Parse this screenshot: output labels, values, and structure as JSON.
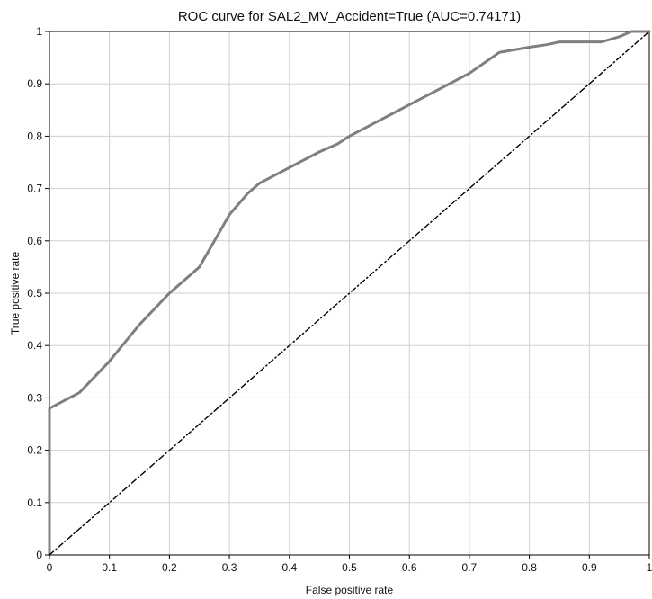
{
  "chart_data": {
    "type": "line",
    "title": "ROC curve for SAL2_MV_Accident=True (AUC=0.74171)",
    "xlabel": "False positive rate",
    "ylabel": "True positive rate",
    "xlim": [
      0,
      1
    ],
    "ylim": [
      0,
      1
    ],
    "xticks": [
      "0",
      "0.1",
      "0.2",
      "0.3",
      "0.4",
      "0.5",
      "0.6",
      "0.7",
      "0.8",
      "0.9",
      "1"
    ],
    "yticks": [
      "0",
      "0.1",
      "0.2",
      "0.3",
      "0.4",
      "0.5",
      "0.6",
      "0.7",
      "0.8",
      "0.9",
      "1"
    ],
    "grid": true,
    "legend": "none",
    "series": [
      {
        "style": "solid",
        "color": "#7f7f7f",
        "x": [
          0,
          0,
          0.05,
          0.1,
          0.15,
          0.2,
          0.25,
          0.3,
          0.33,
          0.35,
          0.4,
          0.45,
          0.48,
          0.5,
          0.55,
          0.6,
          0.65,
          0.7,
          0.75,
          0.8,
          0.83,
          0.85,
          0.9,
          0.92,
          0.95,
          0.97,
          1
        ],
        "y": [
          0,
          0.28,
          0.31,
          0.37,
          0.44,
          0.5,
          0.55,
          0.65,
          0.69,
          0.71,
          0.74,
          0.77,
          0.785,
          0.8,
          0.83,
          0.86,
          0.89,
          0.92,
          0.96,
          0.97,
          0.975,
          0.98,
          0.98,
          0.98,
          0.99,
          1.0,
          1.0
        ]
      },
      {
        "style": "dash-dot",
        "color": "#000000",
        "x": [
          0,
          1
        ],
        "y": [
          0,
          1
        ]
      }
    ]
  }
}
